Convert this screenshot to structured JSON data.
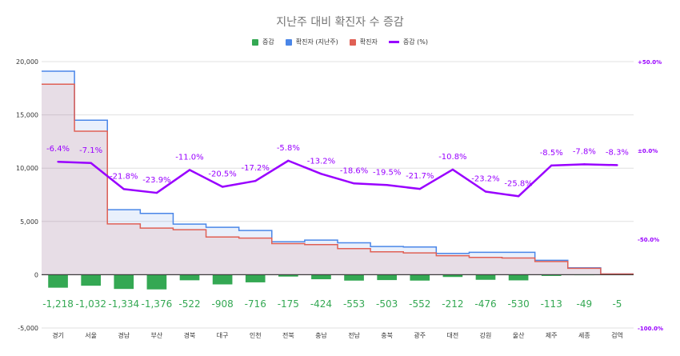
{
  "chart_data": {
    "type": "combo",
    "title": "지난주 대비 확진자 수 증감",
    "categories": [
      "경기",
      "서울",
      "경남",
      "부산",
      "경북",
      "대구",
      "인천",
      "전북",
      "충남",
      "전남",
      "충북",
      "광주",
      "대전",
      "강원",
      "울산",
      "제주",
      "세종",
      "검역"
    ],
    "series": [
      {
        "name": "증감",
        "kind": "bar",
        "color": "#34a853",
        "axis": "left",
        "values": [
          -1218,
          -1032,
          -1334,
          -1376,
          -522,
          -908,
          -716,
          -175,
          -424,
          -553,
          -503,
          -552,
          -212,
          -476,
          -530,
          -113,
          -49,
          -5
        ],
        "labels": [
          "-1,218",
          "-1,032",
          "-1,334",
          "-1,376",
          "-522",
          "-908",
          "-716",
          "-175",
          "-424",
          "-553",
          "-503",
          "-552",
          "-212",
          "-476",
          "-530",
          "-113",
          "-49",
          "-5"
        ]
      },
      {
        "name": "확진자 (지난주)",
        "kind": "stepped-area",
        "color": "#4a86e8",
        "axis": "left",
        "values": [
          19100,
          14500,
          6100,
          5750,
          4750,
          4450,
          4150,
          3100,
          3250,
          3000,
          2650,
          2600,
          2000,
          2100,
          2100,
          1350,
          650,
          70
        ]
      },
      {
        "name": "확진자",
        "kind": "stepped-area",
        "color": "#e06055",
        "axis": "left",
        "values": [
          17882,
          13468,
          4766,
          4374,
          4228,
          3542,
          3434,
          2925,
          2826,
          2447,
          2147,
          2048,
          1788,
          1624,
          1570,
          1237,
          601,
          65
        ]
      },
      {
        "name": "증감 (%)",
        "kind": "line",
        "color": "#9900ff",
        "axis": "right",
        "values": [
          -6.4,
          -7.1,
          -21.8,
          -23.9,
          -11.0,
          -20.5,
          -17.2,
          -5.8,
          -13.2,
          -18.6,
          -19.5,
          -21.7,
          -10.8,
          -23.2,
          -25.8,
          -8.5,
          -7.8,
          -8.3
        ],
        "labels": [
          "-6.4%",
          "-7.1%",
          "-21.8%",
          "-23.9%",
          "-11.0%",
          "-20.5%",
          "-17.2%",
          "-5.8%",
          "-13.2%",
          "-18.6%",
          "-19.5%",
          "-21.7%",
          "-10.8%",
          "-23.2%",
          "-25.8%",
          "-8.5%",
          "-7.8%",
          "-8.3%"
        ]
      }
    ],
    "left_axis": {
      "min": -5000,
      "max": 20000,
      "ticks": [
        20000,
        15000,
        10000,
        5000,
        0,
        -5000
      ],
      "tick_labels": [
        "20,000",
        "15,000",
        "10,000",
        "5,000",
        "0",
        "-5,000"
      ]
    },
    "right_axis": {
      "min": -100,
      "max": 50,
      "ticks": [
        50,
        0,
        -50,
        -100
      ],
      "tick_labels": [
        "+50.0%",
        "±0.0%",
        "-50.0%",
        "-100.0%"
      ]
    },
    "grid": true,
    "legend_position": "top"
  }
}
